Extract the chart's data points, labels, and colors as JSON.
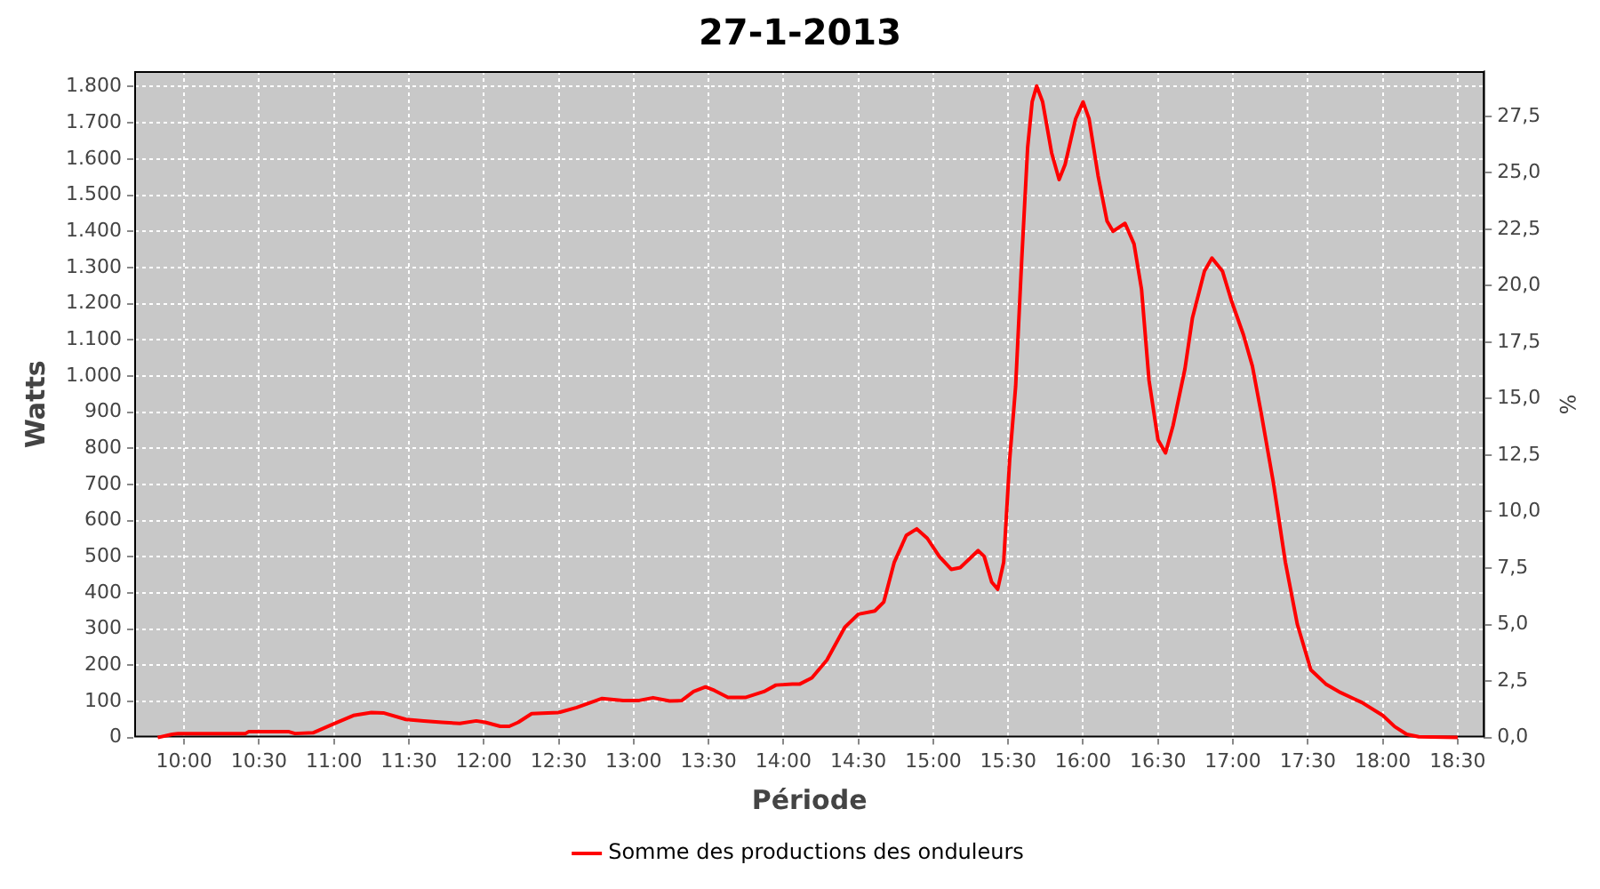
{
  "chart_data": {
    "type": "line",
    "title": "27-1-2013",
    "xlabel": "Période",
    "ylabel": "Watts",
    "y2label": "%",
    "xlim": [
      9.667,
      18.68
    ],
    "xticks": [
      {
        "value": 10,
        "label": "10:00"
      },
      {
        "value": 10.5,
        "label": "10:30"
      },
      {
        "value": 11,
        "label": "11:00"
      },
      {
        "value": 11.5,
        "label": "11:30"
      },
      {
        "value": 12,
        "label": "12:00"
      },
      {
        "value": 12.5,
        "label": "12:30"
      },
      {
        "value": 13,
        "label": "13:00"
      },
      {
        "value": 13.5,
        "label": "13:30"
      },
      {
        "value": 14,
        "label": "14:00"
      },
      {
        "value": 14.5,
        "label": "14:30"
      },
      {
        "value": 15,
        "label": "15:00"
      },
      {
        "value": 15.5,
        "label": "15:30"
      },
      {
        "value": 16,
        "label": "16:00"
      },
      {
        "value": 16.5,
        "label": "16:30"
      },
      {
        "value": 17,
        "label": "17:00"
      },
      {
        "value": 17.5,
        "label": "17:30"
      },
      {
        "value": 18,
        "label": "18:00"
      },
      {
        "value": 18.5,
        "label": "18:30"
      }
    ],
    "ylim": [
      0,
      1843
    ],
    "yticks": [
      0,
      100,
      200,
      300,
      400,
      500,
      600,
      700,
      800,
      900,
      {
        "value": 1000,
        "label": "1.000"
      },
      {
        "value": 1100,
        "label": "1.100"
      },
      {
        "value": 1200,
        "label": "1.200"
      },
      {
        "value": 1300,
        "label": "1.300"
      },
      {
        "value": 1400,
        "label": "1.400"
      },
      {
        "value": 1500,
        "label": "1.500"
      },
      {
        "value": 1600,
        "label": "1.600"
      },
      {
        "value": 1700,
        "label": "1.700"
      },
      {
        "value": 1800,
        "label": "1.800"
      }
    ],
    "y2lim": [
      0,
      29.5
    ],
    "y2ticks": [
      {
        "value": 0,
        "label": "0,0"
      },
      {
        "value": 2.5,
        "label": "2,5"
      },
      {
        "value": 5,
        "label": "5,0"
      },
      {
        "value": 7.5,
        "label": "7,5"
      },
      {
        "value": 10,
        "label": "10,0"
      },
      {
        "value": 12.5,
        "label": "12,5"
      },
      {
        "value": 15,
        "label": "15,0"
      },
      {
        "value": 17.5,
        "label": "17,5"
      },
      {
        "value": 20,
        "label": "20,0"
      },
      {
        "value": 22.5,
        "label": "22,5"
      },
      {
        "value": 25,
        "label": "25,0"
      },
      {
        "value": 27.5,
        "label": "27,5"
      }
    ],
    "grid": true,
    "legend": "bottom",
    "marker": "none",
    "line_style": "solid",
    "series": [
      {
        "name": "Somme des productions des onduleurs",
        "color": "#ff0000",
        "x": [
          9.824,
          9.92,
          9.96,
          10.41,
          10.43,
          10.7,
          10.74,
          10.86,
          11.0,
          11.13,
          11.25,
          11.33,
          11.48,
          11.6,
          11.72,
          11.84,
          11.95,
          12.01,
          12.11,
          12.17,
          12.23,
          12.32,
          12.5,
          12.62,
          12.79,
          12.93,
          13.03,
          13.13,
          13.24,
          13.32,
          13.4,
          13.48,
          13.54,
          13.63,
          13.75,
          13.87,
          13.95,
          14.06,
          14.11,
          14.19,
          14.29,
          14.41,
          14.5,
          14.61,
          14.67,
          14.74,
          14.82,
          14.89,
          14.96,
          15.04,
          15.12,
          15.18,
          15.3,
          15.34,
          15.39,
          15.43,
          15.47,
          15.51,
          15.55,
          15.59,
          15.63,
          15.66,
          15.69,
          15.73,
          15.79,
          15.84,
          15.88,
          15.95,
          16.0,
          16.04,
          16.1,
          16.16,
          16.2,
          16.28,
          16.34,
          16.39,
          16.44,
          16.5,
          16.55,
          16.6,
          16.68,
          16.73,
          16.81,
          16.86,
          16.93,
          16.99,
          17.07,
          17.13,
          17.19,
          17.27,
          17.35,
          17.43,
          17.52,
          17.62,
          17.72,
          17.86,
          18.0,
          18.08,
          18.16,
          18.24,
          18.5
        ],
        "values": [
          0,
          9,
          11,
          11,
          16,
          16,
          11,
          13,
          38,
          61,
          69,
          68,
          50,
          46,
          42,
          39,
          46,
          42,
          31,
          31,
          42,
          66,
          69,
          83,
          108,
          102,
          102,
          110,
          101,
          102,
          127,
          140,
          130,
          111,
          111,
          127,
          145,
          148,
          148,
          165,
          214,
          305,
          341,
          350,
          375,
          485,
          559,
          577,
          551,
          501,
          465,
          470,
          517,
          501,
          430,
          410,
          485,
          768,
          972,
          1318,
          1632,
          1758,
          1802,
          1758,
          1617,
          1543,
          1585,
          1711,
          1758,
          1711,
          1554,
          1428,
          1400,
          1422,
          1365,
          1240,
          988,
          823,
          787,
          862,
          1020,
          1161,
          1290,
          1326,
          1290,
          1208,
          1114,
          1027,
          894,
          705,
          485,
          313,
          187,
          148,
          124,
          97,
          61,
          30,
          9,
          2,
          0
        ]
      }
    ]
  }
}
